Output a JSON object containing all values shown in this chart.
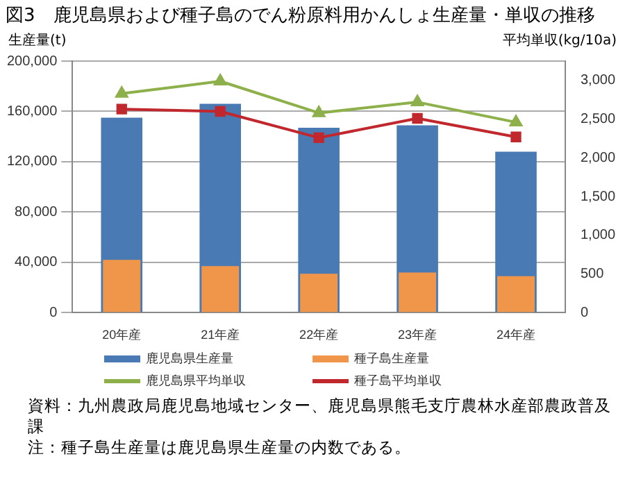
{
  "chart_data": {
    "type": "bar",
    "title": "図3　鹿児島県および種子島のでん粉原料用かんしょ生産量・単収の推移",
    "ylabel": "生産量(t)",
    "y2label": "平均単収(kg/10a)",
    "categories": [
      "20年産",
      "21年産",
      "22年産",
      "23年産",
      "24年産"
    ],
    "series": [
      {
        "name": "鹿児島県生産量",
        "color": "#4a7ab4",
        "values": [
          155000,
          166000,
          147000,
          149000,
          128000
        ]
      },
      {
        "name": "種子島生産量",
        "color": "#f0964a",
        "values": [
          42000,
          37000,
          31000,
          32000,
          29000
        ]
      },
      {
        "name": "鹿児島県平均単収",
        "type": "line",
        "axis": "y2",
        "color": "#8db04a",
        "marker": "triangle",
        "values": [
          2830,
          2990,
          2580,
          2720,
          2460
        ]
      },
      {
        "name": "種子島平均単収",
        "type": "line",
        "axis": "y2",
        "color": "#c0282e",
        "marker": "square",
        "values": [
          2630,
          2600,
          2260,
          2510,
          2270
        ]
      }
    ],
    "ylim": [
      0,
      200000
    ],
    "yticks": [
      0,
      {
        "value": 40000,
        "label": "40,000"
      },
      {
        "value": 80000,
        "label": "80,000"
      },
      {
        "value": 120000,
        "label": "120,000"
      },
      {
        "value": 160000,
        "label": "160,000"
      },
      {
        "value": 200000,
        "label": "200,000"
      }
    ],
    "y2lim": [
      0,
      3250
    ],
    "y2ticks": [
      0,
      500,
      {
        "value": 1000,
        "label": "1,000"
      },
      {
        "value": 1500,
        "label": "1,500"
      },
      {
        "value": 2000,
        "label": "2,000"
      },
      {
        "value": 2500,
        "label": "2,500"
      },
      {
        "value": 3000,
        "label": "3,000"
      }
    ],
    "grid": "y",
    "legend": "bottom",
    "annotations": [
      "資料：九州農政局鹿児島地域センター、鹿児島県熊毛支庁農林水産部農政普及課",
      "注：種子島生産量は鹿児島県生産量の内数である。"
    ]
  }
}
